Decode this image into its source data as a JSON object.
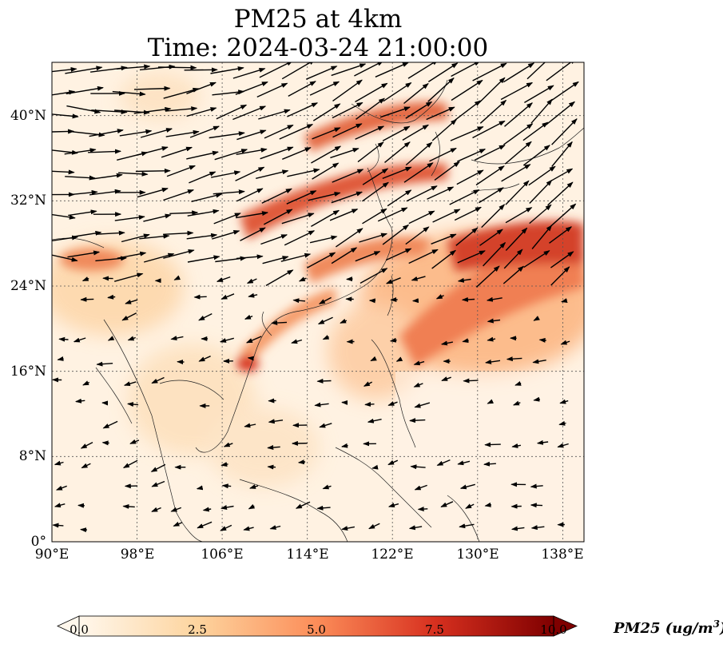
{
  "title": {
    "line1": "PM25 at 4km",
    "line2": "Time: 2024-03-24 21:00:00"
  },
  "map": {
    "lon_range": [
      90,
      140
    ],
    "lat_range": [
      0,
      45
    ],
    "lon_ticks": [
      "90°E",
      "98°E",
      "106°E",
      "114°E",
      "122°E",
      "130°E",
      "138°E"
    ],
    "lat_ticks": [
      "0°",
      "8°N",
      "16°N",
      "24°N",
      "32°N",
      "40°N"
    ],
    "gridlines": "dotted",
    "field": "PM25",
    "wind_vectors": true,
    "colormap": "OrRd"
  },
  "colorbar": {
    "label": "PM25 (ug/m",
    "label_sup": "3",
    "label_close": ")",
    "ticks": [
      "0.0",
      "2.5",
      "5.0",
      "7.5",
      "10.0"
    ],
    "range": [
      0,
      10
    ],
    "colors": [
      "#fff7ec",
      "#fdd49e",
      "#fc8d59",
      "#d7301f",
      "#7f0000"
    ]
  }
}
